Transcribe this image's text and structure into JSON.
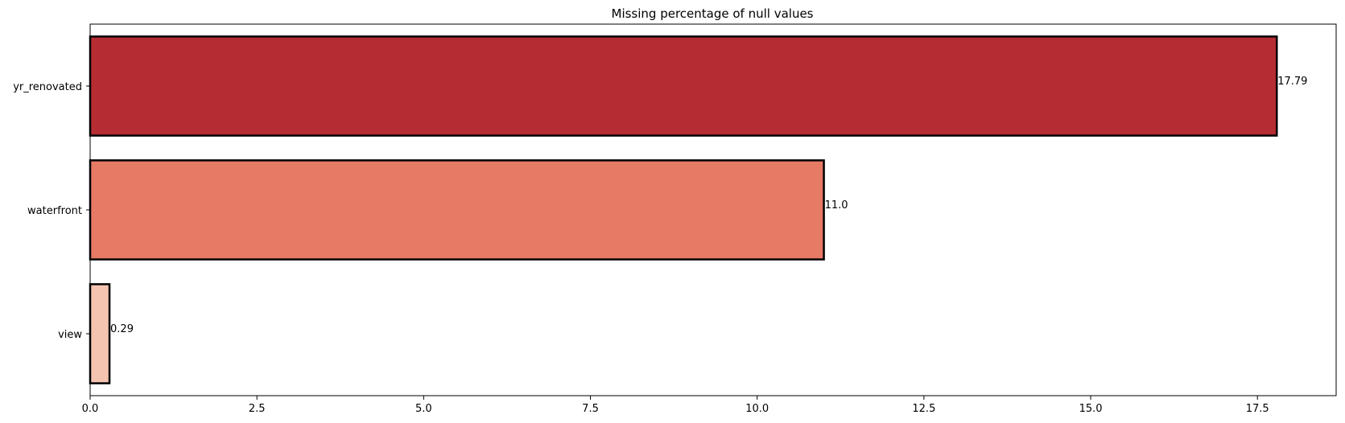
{
  "chart_data": {
    "type": "bar",
    "orientation": "horizontal",
    "title": "Missing percentage of null values",
    "xlabel": "",
    "ylabel": "",
    "categories": [
      "yr_renovated",
      "waterfront",
      "view"
    ],
    "values": [
      17.79,
      11.0,
      0.29
    ],
    "value_labels": [
      "17.79",
      "11.0",
      "0.29"
    ],
    "xlim": [
      0,
      18.68
    ],
    "xticks": [
      0.0,
      2.5,
      5.0,
      7.5,
      10.0,
      12.5,
      15.0,
      17.5
    ],
    "xtick_labels": [
      "0.0",
      "2.5",
      "5.0",
      "7.5",
      "10.0",
      "12.5",
      "15.0",
      "17.5"
    ],
    "grid": false,
    "bar_colors": [
      "#b52d33",
      "#e67a65",
      "#f4c4b1"
    ],
    "edge_color": "#000000"
  }
}
